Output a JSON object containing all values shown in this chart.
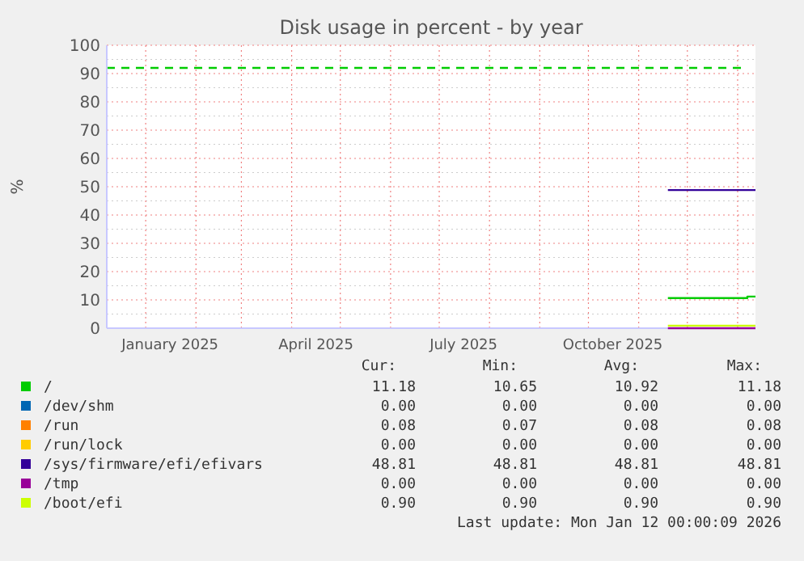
{
  "chart_data": {
    "type": "line",
    "title": "Disk usage in percent - by year",
    "ylabel": "%",
    "xlim": [
      "2024-12-08",
      "2026-01-12"
    ],
    "xticks": [
      {
        "value": "2025-01-01",
        "label": null
      },
      {
        "value": "2025-01-16",
        "label": "January 2025"
      },
      {
        "value": "2025-02-01",
        "label": null
      },
      {
        "value": "2025-03-01",
        "label": null
      },
      {
        "value": "2025-04-01",
        "label": null
      },
      {
        "value": "2025-04-16",
        "label": "April 2025"
      },
      {
        "value": "2025-05-01",
        "label": null
      },
      {
        "value": "2025-06-01",
        "label": null
      },
      {
        "value": "2025-07-01",
        "label": null
      },
      {
        "value": "2025-07-16",
        "label": "July 2025"
      },
      {
        "value": "2025-08-01",
        "label": null
      },
      {
        "value": "2025-09-01",
        "label": null
      },
      {
        "value": "2025-10-01",
        "label": null
      },
      {
        "value": "2025-10-16",
        "label": "October 2025"
      },
      {
        "value": "2025-11-01",
        "label": null
      },
      {
        "value": "2025-12-01",
        "label": null
      },
      {
        "value": "2026-01-01",
        "label": null
      }
    ],
    "ylim": [
      0,
      100
    ],
    "yticks": [
      0,
      10,
      20,
      30,
      40,
      50,
      60,
      70,
      80,
      90,
      100
    ],
    "grid": true,
    "legend": "bottom",
    "line_style": "solid",
    "series": [
      {
        "name": "/",
        "color": "#00cc00",
        "x": [
          "2025-11-19",
          "2026-01-07",
          "2026-01-07",
          "2026-01-12"
        ],
        "values": [
          10.65,
          10.65,
          11.18,
          11.18
        ]
      },
      {
        "name": "/dev/shm",
        "color": "#0066b3"
      },
      {
        "name": "/run",
        "color": "#ff8000"
      },
      {
        "name": "/run/lock",
        "color": "#ffcc00"
      },
      {
        "name": "/sys/firmware/efi/efivars",
        "color": "#330099",
        "x": [
          "2025-11-19",
          "2026-01-12"
        ],
        "values": [
          48.81,
          48.81
        ]
      },
      {
        "name": "/tmp",
        "color": "#990099",
        "x": [
          "2025-11-19",
          "2026-01-12"
        ],
        "values": [
          0,
          0
        ]
      },
      {
        "name": "/boot/efi",
        "color": "#ccff00",
        "x": [
          "2025-11-19",
          "2026-01-12"
        ],
        "values": [
          0.9,
          0.9
        ]
      }
    ],
    "ref_lines": [
      {
        "axis": "y",
        "value": 92,
        "color": "#00cc00",
        "line_style": "dashed"
      }
    ],
    "annotations": [
      "Cur:",
      "Min:",
      "Avg:",
      "Max:",
      "11.18",
      "10.65",
      "10.92",
      "11.18",
      "0.00",
      "0.00",
      "0.00",
      "0.00",
      "0.08",
      "0.07",
      "0.08",
      "0.08",
      "0.00",
      "0.00",
      "0.00",
      "0.00",
      "48.81",
      "48.81",
      "48.81",
      "48.81",
      "0.00",
      "0.00",
      "0.00",
      "0.00",
      "0.90",
      "0.90",
      "0.90",
      "0.90",
      "Last update: Mon Jan 12 00:00:09 2026"
    ]
  }
}
